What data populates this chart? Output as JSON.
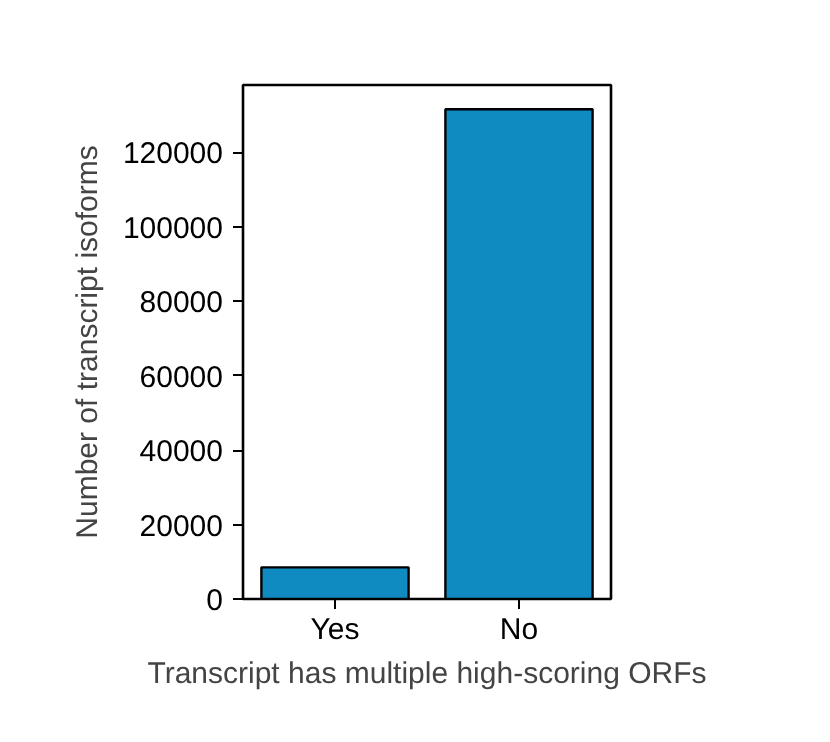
{
  "chart_data": {
    "type": "bar",
    "xlabel": "Transcript has multiple high-scoring ORFs",
    "ylabel": "Number of transcript isoforms",
    "categories": [
      "Yes",
      "No"
    ],
    "values": [
      8500,
      131500
    ],
    "color": "#0f8bc1",
    "ylim": [
      0,
      138000
    ],
    "yticks": [
      0,
      20000,
      40000,
      60000,
      80000,
      100000,
      120000
    ],
    "grid": false
  }
}
